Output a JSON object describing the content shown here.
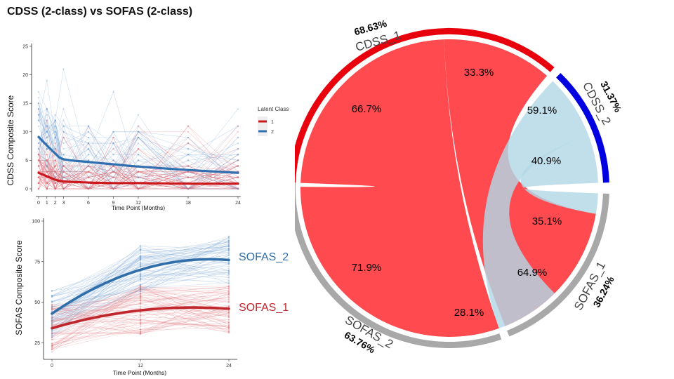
{
  "title": "CDSS (2-class) vs SOFAS (2-class)",
  "chart_data": [
    {
      "type": "line",
      "ylabel": "CDSS Composite Score",
      "xlabel": "Time Point (Months)",
      "x": [
        0,
        1,
        2,
        3,
        6,
        9,
        12,
        18,
        24
      ],
      "xticks": [
        "0",
        "1",
        "2",
        "3",
        "6",
        "9",
        "12",
        "18",
        "24"
      ],
      "yticks": [
        "0",
        "5",
        "10",
        "15",
        "20",
        "25"
      ],
      "xlim": [
        0,
        24
      ],
      "ylim": [
        0,
        25
      ],
      "legend": {
        "title": "Latent Class",
        "placement": "right",
        "entries": [
          "1",
          "2"
        ]
      },
      "series": [
        {
          "name": "1",
          "color": "#cb181d",
          "values": [
            2.8,
            2.2,
            1.6,
            1.3,
            1.1,
            1.0,
            1.0,
            0.9,
            0.9
          ]
        },
        {
          "name": "2",
          "color": "#3070b0",
          "values": [
            9.1,
            7.6,
            6.2,
            5.2,
            4.7,
            4.3,
            3.9,
            3.3,
            2.8
          ]
        }
      ],
      "individual_trajectories": "many faint per-subject lines, scores 0–25"
    },
    {
      "type": "line",
      "ylabel": "SOFAS Composite Score",
      "xlabel": "Time Point (Months)",
      "x": [
        0,
        12,
        24
      ],
      "xticks": [
        "0",
        "12",
        "24"
      ],
      "yticks": [
        "25",
        "50",
        "75",
        "100"
      ],
      "xlim": [
        0,
        24
      ],
      "ylim": [
        20,
        100
      ],
      "series": [
        {
          "name": "SOFAS_2",
          "color": "#2f6ea8",
          "values": [
            43,
            70,
            76
          ]
        },
        {
          "name": "SOFAS_1",
          "color": "#c0272d",
          "values": [
            34,
            45,
            46
          ]
        }
      ],
      "individual_trajectories": "many faint per-subject lines, scores 20–100"
    },
    {
      "type": "chord",
      "groups": [
        {
          "name": "CDSS_1",
          "percent": "68.63%",
          "color": "#e8000d"
        },
        {
          "name": "CDSS_2",
          "percent": "31.37%",
          "color": "#0000e0"
        },
        {
          "name": "SOFAS_1",
          "percent": "36.24%",
          "color": "#a8a8a8"
        },
        {
          "name": "SOFAS_2",
          "percent": "63.76%",
          "color": "#a8a8a8"
        }
      ],
      "links": [
        {
          "from": "CDSS_1",
          "to": "SOFAS_2",
          "from_pct": "66.7%",
          "to_pct": "71.9%",
          "color": "#ff4a50"
        },
        {
          "from": "CDSS_1",
          "to": "SOFAS_1",
          "from_pct": "33.3%",
          "to_pct": "64.9%",
          "color": "#ff4a50"
        },
        {
          "from": "CDSS_2",
          "to": "SOFAS_2",
          "from_pct": "59.1%",
          "to_pct": "28.1%",
          "color": "#b2d8e6"
        },
        {
          "from": "CDSS_2",
          "to": "SOFAS_1",
          "from_pct": "40.9%",
          "to_pct": "35.1%",
          "color": "#b2d8e6"
        }
      ]
    }
  ]
}
